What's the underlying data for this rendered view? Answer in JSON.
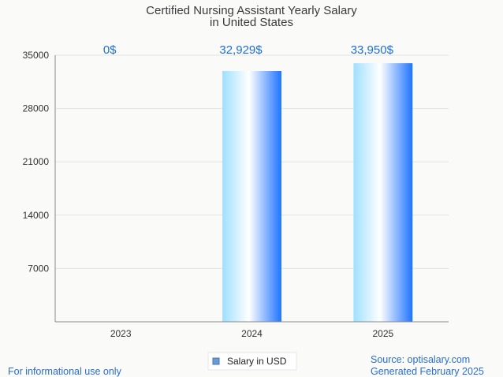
{
  "title": [
    "Certified Nursing Assistant Yearly Salary",
    "in United States"
  ],
  "chart_data": {
    "type": "bar",
    "categories": [
      "2023",
      "2024",
      "2025"
    ],
    "series": [
      {
        "name": "Salary in USD",
        "values": [
          0,
          32929,
          33950
        ],
        "labels": [
          "0$",
          "32,929$",
          "33,950$"
        ]
      }
    ],
    "ylim": [
      0,
      35000
    ],
    "yticks": [
      7000,
      14000,
      21000,
      28000,
      35000
    ],
    "grid": true,
    "legend_position": "bottom"
  },
  "colors": {
    "bar_light": "#9fe0ff",
    "bar_mid": "#ffffff",
    "bar_dark": "#1e74ff",
    "label": "#1f6fd6",
    "footer": "#2a6fc9",
    "grid": "#e3e3e3",
    "axis": "#888888"
  },
  "footer": {
    "disclaimer": "For informational use only",
    "source": "Source: optisalary.com",
    "generated": "Generated February 2025"
  }
}
